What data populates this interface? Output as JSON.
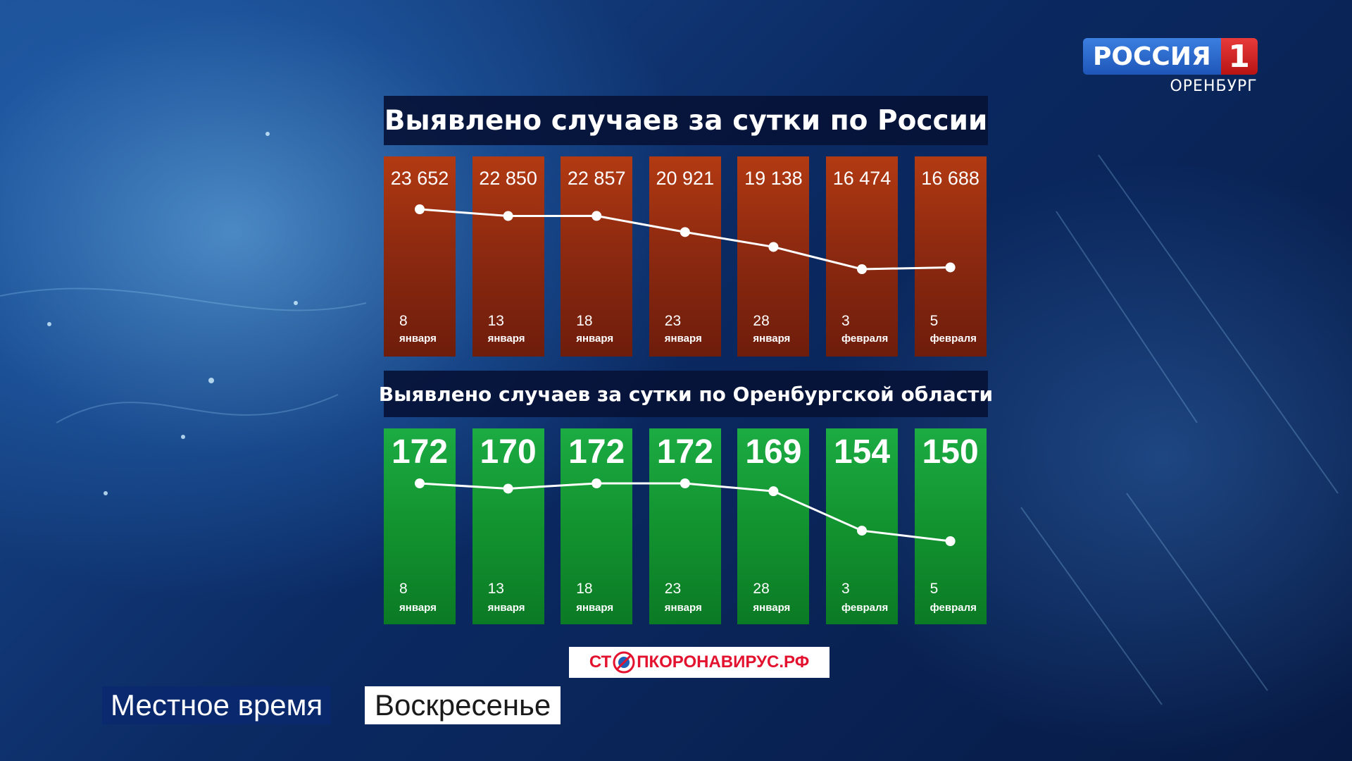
{
  "channel": {
    "name": "РОССИЯ",
    "number": "1",
    "region": "ОРЕНБУРГ"
  },
  "banner": {
    "part1": "СТ",
    "part2": "ПКОРОНАВИРУС.РФ"
  },
  "lower_third": {
    "show": "Местное время",
    "day": "Воскресенье"
  },
  "colors": {
    "russia_bar": "#9a3010",
    "oren_bar": "#139a33",
    "line": "#ffffff"
  },
  "chart_data": [
    {
      "type": "bar",
      "title": "Выявлено случаев за сутки по России",
      "categories": [
        "8 января",
        "13 января",
        "18 января",
        "23 января",
        "28 января",
        "3 февраля",
        "5 февраля"
      ],
      "days": [
        "8",
        "13",
        "18",
        "23",
        "28",
        "3",
        "5"
      ],
      "months": [
        "января",
        "января",
        "января",
        "января",
        "января",
        "февраля",
        "февраля"
      ],
      "values": [
        23652,
        22850,
        22857,
        20921,
        19138,
        16474,
        16688
      ],
      "value_labels": [
        "23 652",
        "22 850",
        "22 857",
        "20 921",
        "19 138",
        "16 474",
        "16 688"
      ],
      "overlay": "line"
    },
    {
      "type": "bar",
      "title": "Выявлено случаев за сутки по Оренбургской области",
      "categories": [
        "8 января",
        "13 января",
        "18 января",
        "23 января",
        "28 января",
        "3 февраля",
        "5 февраля"
      ],
      "days": [
        "8",
        "13",
        "18",
        "23",
        "28",
        "3",
        "5"
      ],
      "months": [
        "января",
        "января",
        "января",
        "января",
        "января",
        "февраля",
        "февраля"
      ],
      "values": [
        172,
        170,
        172,
        172,
        169,
        154,
        150
      ],
      "value_labels": [
        "172",
        "170",
        "172",
        "172",
        "169",
        "154",
        "150"
      ],
      "overlay": "line"
    }
  ]
}
